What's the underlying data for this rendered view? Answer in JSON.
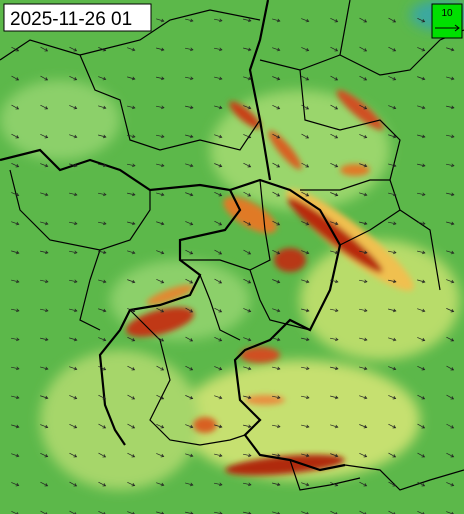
{
  "timestamp": "2025-11-26 01",
  "wind_scale": {
    "label": "10"
  }
}
